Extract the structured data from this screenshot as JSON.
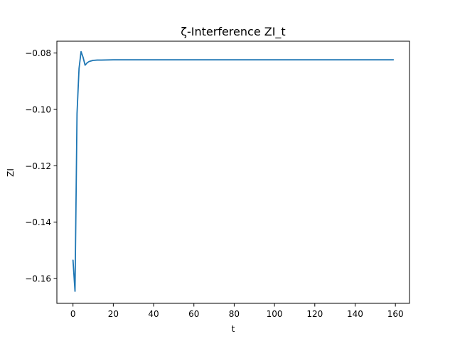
{
  "chart_data": {
    "type": "line",
    "title": "ζ-Interference ZI_t",
    "xlabel": "t",
    "ylabel": "ZI",
    "xlim": [
      -8,
      167
    ],
    "ylim": [
      -0.1688,
      -0.0758
    ],
    "xticks": [
      0,
      20,
      40,
      60,
      80,
      100,
      120,
      140,
      160
    ],
    "xtick_labels": [
      "0",
      "20",
      "40",
      "60",
      "80",
      "100",
      "120",
      "140",
      "160"
    ],
    "yticks": [
      -0.16,
      -0.14,
      -0.12,
      -0.1,
      -0.08
    ],
    "ytick_labels": [
      "−0.16",
      "−0.14",
      "−0.12",
      "−0.10",
      "−0.08"
    ],
    "grid": false,
    "colors": {
      "series": "#1f77b4"
    },
    "series": [
      {
        "x": [
          0,
          1,
          2,
          3,
          4,
          5,
          6,
          7,
          8,
          9,
          10,
          12,
          14,
          20,
          40,
          60,
          80,
          100,
          120,
          140,
          159
        ],
        "y": [
          -0.1535,
          -0.1645,
          -0.1015,
          -0.0855,
          -0.0795,
          -0.0815,
          -0.0843,
          -0.0835,
          -0.083,
          -0.0828,
          -0.0826,
          -0.0825,
          -0.0825,
          -0.0824,
          -0.0824,
          -0.0824,
          -0.0824,
          -0.0824,
          -0.0824,
          -0.0824,
          -0.0824
        ]
      }
    ]
  }
}
